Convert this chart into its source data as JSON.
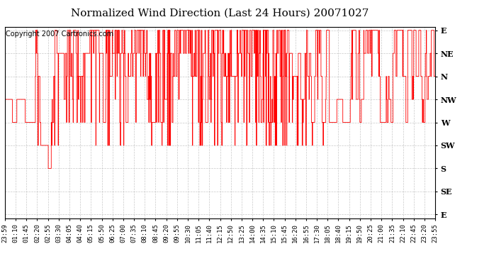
{
  "title": "Normalized Wind Direction (Last 24 Hours) 20071027",
  "copyright_text": "Copyright 2007 Cartronics.com",
  "line_color": "#ff0000",
  "background_color": "#ffffff",
  "grid_color": "#bbbbbb",
  "ytick_labels": [
    "E",
    "NE",
    "N",
    "NW",
    "W",
    "SW",
    "S",
    "SE",
    "E"
  ],
  "ytick_values": [
    0,
    0.125,
    0.25,
    0.375,
    0.5,
    0.625,
    0.75,
    0.875,
    1.0
  ],
  "xtick_labels": [
    "23:59",
    "01:10",
    "01:45",
    "02:20",
    "02:55",
    "03:30",
    "04:05",
    "04:40",
    "05:15",
    "05:50",
    "06:25",
    "07:00",
    "07:35",
    "08:10",
    "08:45",
    "09:20",
    "09:55",
    "10:30",
    "11:05",
    "11:40",
    "12:15",
    "12:50",
    "13:25",
    "14:00",
    "14:35",
    "15:10",
    "15:45",
    "16:20",
    "16:55",
    "17:30",
    "18:05",
    "18:40",
    "19:15",
    "19:50",
    "20:25",
    "21:00",
    "21:35",
    "22:10",
    "22:45",
    "23:20",
    "23:55"
  ],
  "title_fontsize": 11,
  "copyright_fontsize": 7,
  "tick_fontsize": 6.5,
  "ylabel_fontsize": 8
}
